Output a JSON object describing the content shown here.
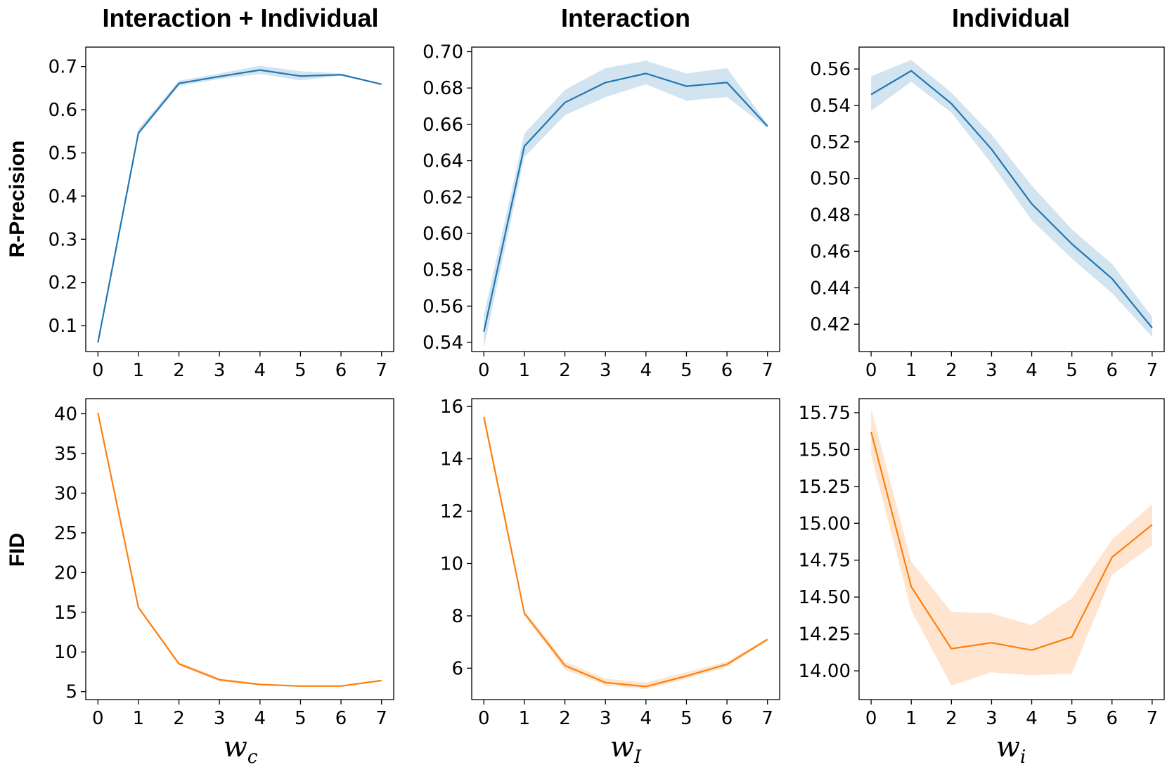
{
  "colors": {
    "blue_line": "#1f77b4",
    "blue_band": "#1f77b4",
    "orange_line": "#ff7f0e",
    "orange_band": "#ff7f0e"
  },
  "column_titles": [
    "Interaction + Individual",
    "Interaction",
    "Individual"
  ],
  "row_labels": [
    "R-Precision",
    "FID"
  ],
  "x_labels": [
    {
      "base": "w",
      "sub": "c"
    },
    {
      "base": "w",
      "sub": "I"
    },
    {
      "base": "w",
      "sub": "i"
    }
  ],
  "chart_data": [
    {
      "type": "line",
      "row": 0,
      "col": 0,
      "title": "Interaction + Individual",
      "ylabel": "R-Precision",
      "xlabel": "",
      "x": [
        0,
        1,
        2,
        3,
        4,
        5,
        6,
        7
      ],
      "xticks": [
        "0",
        "1",
        "2",
        "3",
        "4",
        "5",
        "6",
        "7"
      ],
      "xlim": [
        -0.3,
        7.3
      ],
      "ylim": [
        0.04,
        0.745
      ],
      "yticks": [
        0.1,
        0.2,
        0.3,
        0.4,
        0.5,
        0.6,
        0.7
      ],
      "ytick_labels": [
        "0.1",
        "0.2",
        "0.3",
        "0.4",
        "0.5",
        "0.6",
        "0.7"
      ],
      "series": [
        {
          "values": [
            0.061,
            0.546,
            0.661,
            0.677,
            0.692,
            0.678,
            0.681,
            0.659
          ],
          "lower": [
            0.06,
            0.541,
            0.655,
            0.671,
            0.683,
            0.668,
            0.679,
            0.658
          ],
          "upper": [
            0.062,
            0.556,
            0.667,
            0.684,
            0.702,
            0.689,
            0.684,
            0.66
          ],
          "color": "#1f77b4"
        }
      ],
      "grid": false
    },
    {
      "type": "line",
      "row": 0,
      "col": 1,
      "title": "Interaction",
      "ylabel": "",
      "xlabel": "",
      "x": [
        0,
        1,
        2,
        3,
        4,
        5,
        6,
        7
      ],
      "xticks": [
        "0",
        "1",
        "2",
        "3",
        "4",
        "5",
        "6",
        "7"
      ],
      "xlim": [
        -0.3,
        7.3
      ],
      "ylim": [
        0.535,
        0.7025
      ],
      "yticks": [
        0.54,
        0.56,
        0.58,
        0.6,
        0.62,
        0.64,
        0.66,
        0.68,
        0.7
      ],
      "ytick_labels": [
        "0.54",
        "0.56",
        "0.58",
        "0.60",
        "0.62",
        "0.64",
        "0.66",
        "0.68",
        "0.70"
      ],
      "series": [
        {
          "values": [
            0.546,
            0.648,
            0.672,
            0.683,
            0.688,
            0.681,
            0.683,
            0.659
          ],
          "lower": [
            0.537,
            0.642,
            0.665,
            0.675,
            0.682,
            0.673,
            0.675,
            0.658
          ],
          "upper": [
            0.555,
            0.655,
            0.679,
            0.691,
            0.695,
            0.688,
            0.691,
            0.66
          ],
          "color": "#1f77b4"
        }
      ],
      "grid": false
    },
    {
      "type": "line",
      "row": 0,
      "col": 2,
      "title": "Individual",
      "ylabel": "",
      "xlabel": "",
      "x": [
        0,
        1,
        2,
        3,
        4,
        5,
        6,
        7
      ],
      "xticks": [
        "0",
        "1",
        "2",
        "3",
        "4",
        "5",
        "6",
        "7"
      ],
      "xlim": [
        -0.3,
        7.3
      ],
      "ylim": [
        0.405,
        0.572
      ],
      "yticks": [
        0.42,
        0.44,
        0.46,
        0.48,
        0.5,
        0.52,
        0.54,
        0.56
      ],
      "ytick_labels": [
        "0.42",
        "0.44",
        "0.46",
        "0.48",
        "0.50",
        "0.52",
        "0.54",
        "0.56"
      ],
      "series": [
        {
          "values": [
            0.546,
            0.559,
            0.541,
            0.516,
            0.486,
            0.464,
            0.445,
            0.418
          ],
          "lower": [
            0.537,
            0.553,
            0.536,
            0.508,
            0.477,
            0.456,
            0.437,
            0.413
          ],
          "upper": [
            0.556,
            0.565,
            0.547,
            0.524,
            0.496,
            0.472,
            0.453,
            0.424
          ],
          "color": "#1f77b4"
        }
      ],
      "grid": false
    },
    {
      "type": "line",
      "row": 1,
      "col": 0,
      "title": "",
      "ylabel": "FID",
      "xlabel": "w_c",
      "x": [
        0,
        1,
        2,
        3,
        4,
        5,
        6,
        7
      ],
      "xticks": [
        "0",
        "1",
        "2",
        "3",
        "4",
        "5",
        "6",
        "7"
      ],
      "xlim": [
        -0.3,
        7.3
      ],
      "ylim": [
        4.0,
        41.9
      ],
      "yticks": [
        5,
        10,
        15,
        20,
        25,
        30,
        35,
        40
      ],
      "ytick_labels": [
        "5",
        "10",
        "15",
        "20",
        "25",
        "30",
        "35",
        "40"
      ],
      "series": [
        {
          "values": [
            40.1,
            15.6,
            8.5,
            6.5,
            5.9,
            5.7,
            5.7,
            6.4
          ],
          "lower": [
            39.9,
            15.4,
            8.3,
            6.3,
            5.8,
            5.6,
            5.6,
            6.3
          ],
          "upper": [
            40.3,
            15.8,
            8.7,
            6.7,
            6.0,
            5.8,
            5.8,
            6.5
          ],
          "color": "#ff7f0e"
        }
      ],
      "grid": false
    },
    {
      "type": "line",
      "row": 1,
      "col": 1,
      "title": "",
      "ylabel": "",
      "xlabel": "w_I",
      "x": [
        0,
        1,
        2,
        3,
        4,
        5,
        6,
        7
      ],
      "xticks": [
        "0",
        "1",
        "2",
        "3",
        "4",
        "5",
        "6",
        "7"
      ],
      "xlim": [
        -0.3,
        7.3
      ],
      "ylim": [
        4.8,
        16.3
      ],
      "yticks": [
        6,
        8,
        10,
        12,
        14,
        16
      ],
      "ytick_labels": [
        "6",
        "8",
        "10",
        "12",
        "14",
        "16"
      ],
      "series": [
        {
          "values": [
            15.6,
            8.1,
            6.1,
            5.45,
            5.3,
            5.7,
            6.15,
            7.1
          ],
          "lower": [
            15.5,
            8.0,
            5.95,
            5.35,
            5.2,
            5.6,
            6.05,
            7.05
          ],
          "upper": [
            15.8,
            8.2,
            6.25,
            5.6,
            5.45,
            5.85,
            6.25,
            7.15
          ],
          "color": "#ff7f0e"
        }
      ],
      "grid": false
    },
    {
      "type": "line",
      "row": 1,
      "col": 2,
      "title": "",
      "ylabel": "",
      "xlabel": "w_i",
      "x": [
        0,
        1,
        2,
        3,
        4,
        5,
        6,
        7
      ],
      "xticks": [
        "0",
        "1",
        "2",
        "3",
        "4",
        "5",
        "6",
        "7"
      ],
      "xlim": [
        -0.3,
        7.3
      ],
      "ylim": [
        13.805,
        15.845
      ],
      "yticks": [
        14.0,
        14.25,
        14.5,
        14.75,
        15.0,
        15.25,
        15.5,
        15.75
      ],
      "ytick_labels": [
        "14.00",
        "14.25",
        "14.50",
        "14.75",
        "15.00",
        "15.25",
        "15.50",
        "15.75"
      ],
      "series": [
        {
          "values": [
            15.62,
            14.57,
            14.15,
            14.19,
            14.14,
            14.23,
            14.77,
            14.99
          ],
          "lower": [
            15.46,
            14.41,
            13.9,
            13.99,
            13.97,
            13.98,
            14.65,
            14.85
          ],
          "upper": [
            15.78,
            14.74,
            14.4,
            14.39,
            14.31,
            14.49,
            14.89,
            15.13
          ],
          "color": "#ff7f0e"
        }
      ],
      "grid": false
    }
  ]
}
